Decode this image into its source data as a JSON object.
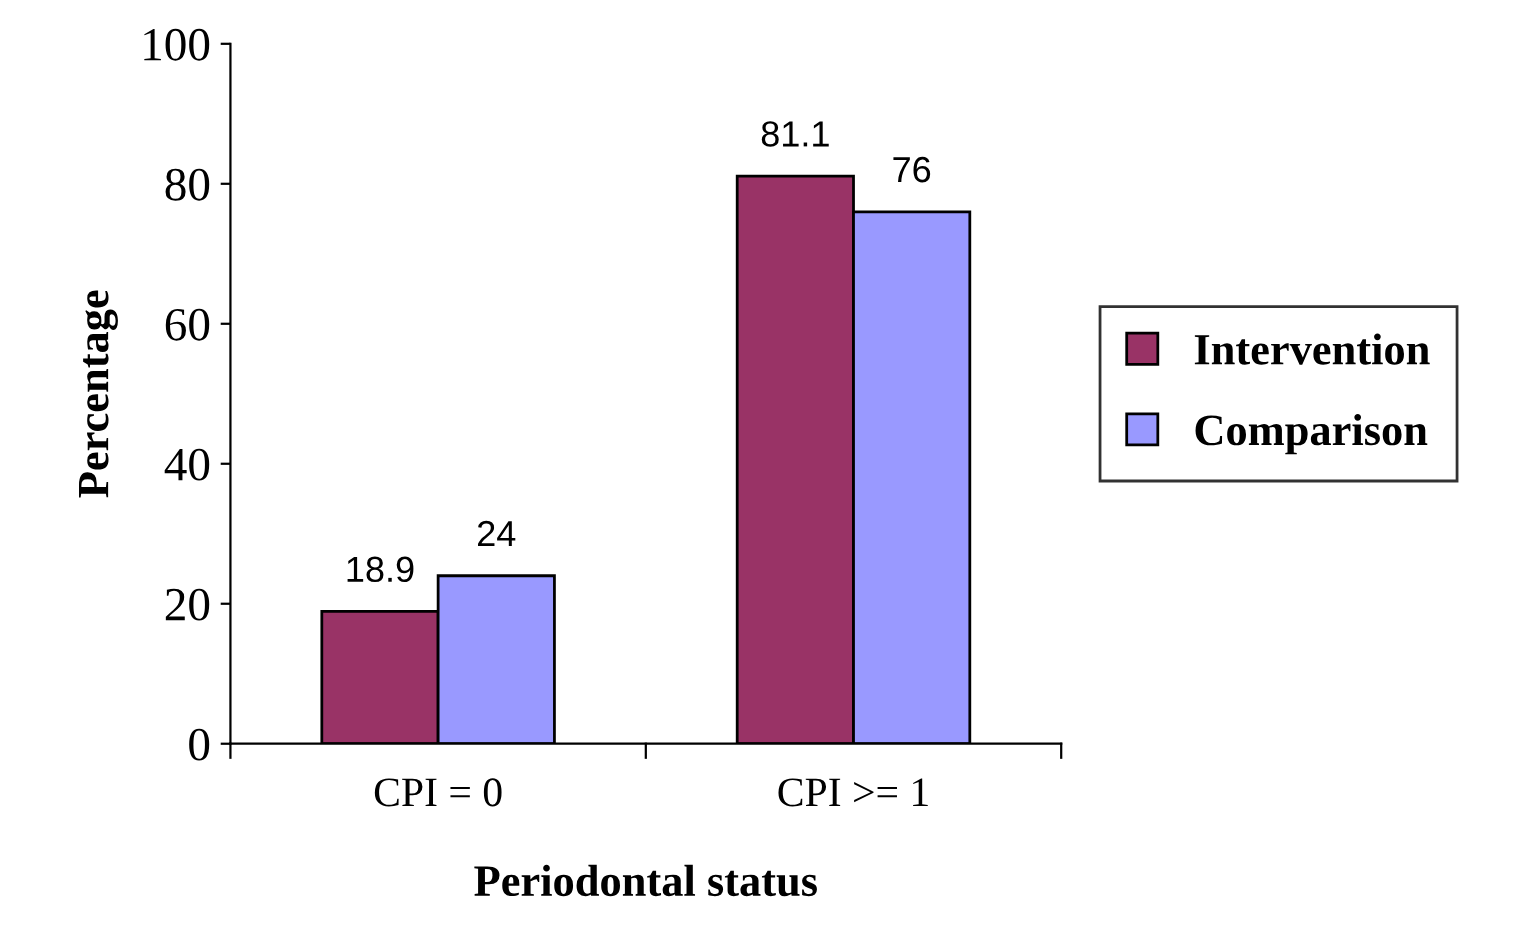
{
  "chart_data": {
    "type": "bar",
    "xlabel": "Periodontal status",
    "ylabel": "Percentage",
    "categories": [
      "CPI = 0",
      "CPI >= 1"
    ],
    "series": [
      {
        "name": "Intervention",
        "color": "#993366",
        "values": [
          18.9,
          81.1
        ]
      },
      {
        "name": "Comparison",
        "color": "#9999ff",
        "values": [
          24,
          76
        ]
      }
    ],
    "ylim": [
      0,
      100
    ],
    "yticks": [
      0,
      20,
      40,
      60,
      80,
      100
    ],
    "grid": false,
    "legend": "right",
    "data_labels": true
  }
}
